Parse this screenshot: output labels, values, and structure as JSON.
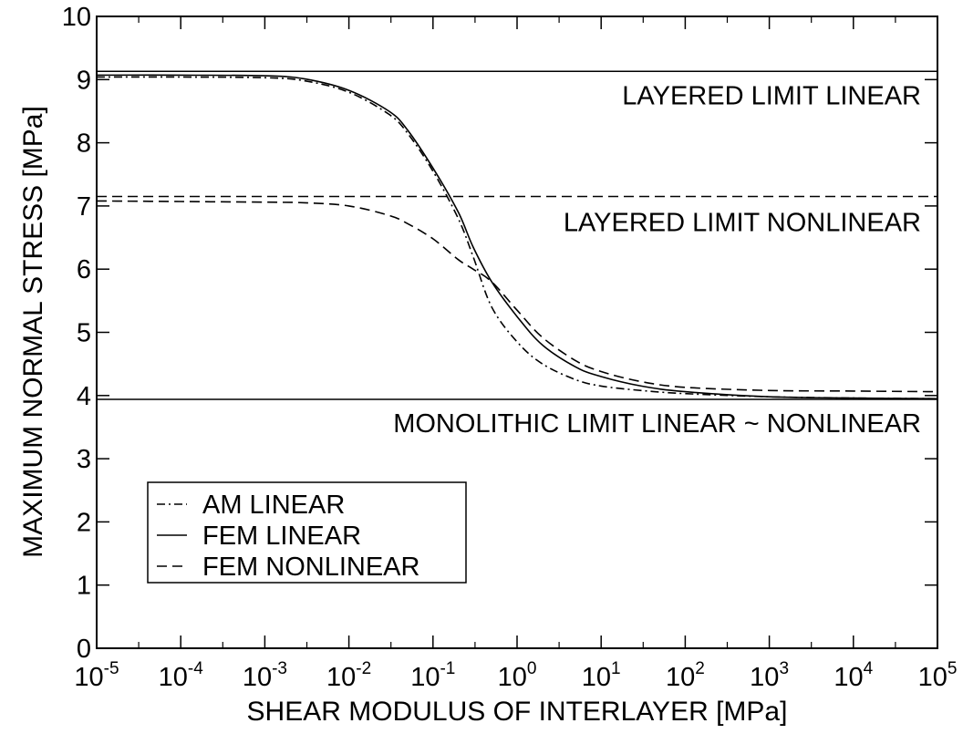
{
  "chart_data": {
    "type": "line",
    "title": "",
    "xlabel": "SHEAR MODULUS OF INTERLAYER [MPa]",
    "ylabel": "MAXIMUM NORMAL STRESS [MPa]",
    "xscale": "log",
    "xlim": [
      1e-05,
      100000.0
    ],
    "ylim": [
      0,
      10
    ],
    "x_ticks": [
      {
        "base": "10",
        "exp": "-5",
        "value": 1e-05
      },
      {
        "base": "10",
        "exp": "-4",
        "value": 0.0001
      },
      {
        "base": "10",
        "exp": "-3",
        "value": 0.001
      },
      {
        "base": "10",
        "exp": "-2",
        "value": 0.01
      },
      {
        "base": "10",
        "exp": "-1",
        "value": 0.1
      },
      {
        "base": "10",
        "exp": "0",
        "value": 1
      },
      {
        "base": "10",
        "exp": "1",
        "value": 10
      },
      {
        "base": "10",
        "exp": "2",
        "value": 100
      },
      {
        "base": "10",
        "exp": "3",
        "value": 1000
      },
      {
        "base": "10",
        "exp": "4",
        "value": 10000
      },
      {
        "base": "10",
        "exp": "5",
        "value": 100000
      }
    ],
    "y_ticks": [
      "0",
      "1",
      "2",
      "3",
      "4",
      "5",
      "6",
      "7",
      "8",
      "9",
      "10"
    ],
    "grid": false,
    "legend_position": "bottom-left",
    "reference_lines": [
      {
        "label": "LAYERED LIMIT LINEAR",
        "y": 9.13,
        "style": "solid"
      },
      {
        "label": "LAYERED LIMIT NONLINEAR",
        "y": 7.15,
        "style": "dashed"
      },
      {
        "label": "MONOLITHIC LIMIT LINEAR ~ NONLINEAR",
        "y": 3.94,
        "style": "solid"
      }
    ],
    "series": [
      {
        "name": "AM LINEAR",
        "style": "dashdot",
        "x": [
          1e-05,
          0.0001,
          0.001,
          0.003,
          0.01,
          0.03,
          0.05,
          0.1,
          0.2,
          0.3,
          0.5,
          1,
          2,
          5,
          10,
          30,
          100,
          1000,
          10000,
          100000
        ],
        "y": [
          9.04,
          9.04,
          9.03,
          8.98,
          8.8,
          8.45,
          8.15,
          7.55,
          6.8,
          6.2,
          5.4,
          4.85,
          4.5,
          4.25,
          4.15,
          4.08,
          4.03,
          3.98,
          3.96,
          3.95
        ]
      },
      {
        "name": "FEM LINEAR",
        "style": "solid",
        "x": [
          1e-05,
          0.0001,
          0.001,
          0.003,
          0.01,
          0.03,
          0.05,
          0.1,
          0.2,
          0.3,
          0.5,
          1,
          2,
          5,
          10,
          30,
          100,
          1000,
          10000,
          100000
        ],
        "y": [
          9.07,
          9.07,
          9.06,
          9.01,
          8.83,
          8.5,
          8.2,
          7.6,
          6.9,
          6.35,
          5.8,
          5.25,
          4.8,
          4.45,
          4.3,
          4.15,
          4.06,
          3.98,
          3.96,
          3.95
        ]
      },
      {
        "name": "FEM NONLINEAR",
        "style": "dashed",
        "x": [
          1e-05,
          0.0001,
          0.001,
          0.003,
          0.01,
          0.03,
          0.05,
          0.1,
          0.2,
          0.3,
          0.5,
          1,
          2,
          5,
          10,
          30,
          100,
          1000,
          10000,
          100000
        ],
        "y": [
          7.08,
          7.07,
          7.06,
          7.05,
          7.0,
          6.85,
          6.72,
          6.48,
          6.15,
          6.0,
          5.8,
          5.35,
          4.92,
          4.55,
          4.38,
          4.22,
          4.13,
          4.08,
          4.07,
          4.06
        ]
      }
    ]
  }
}
